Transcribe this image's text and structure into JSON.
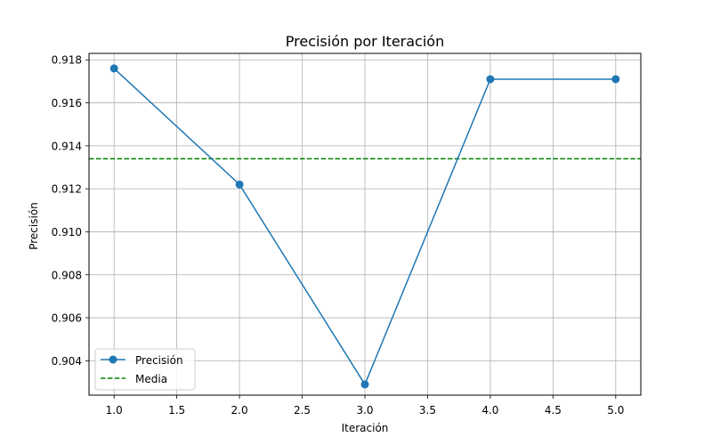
{
  "chart_data": {
    "type": "line",
    "title": "Precisión por Iteración",
    "xlabel": "Iteración",
    "ylabel": "Precisión",
    "xlim": [
      0.8,
      5.2
    ],
    "ylim": [
      0.9024,
      0.9183
    ],
    "xticks": [
      1.0,
      1.5,
      2.0,
      2.5,
      3.0,
      3.5,
      4.0,
      4.5,
      5.0
    ],
    "xtick_labels": [
      "1.0",
      "1.5",
      "2.0",
      "2.5",
      "3.0",
      "3.5",
      "4.0",
      "4.5",
      "5.0"
    ],
    "yticks": [
      0.904,
      0.906,
      0.908,
      0.91,
      0.912,
      0.914,
      0.916,
      0.918
    ],
    "ytick_labels": [
      "0.904",
      "0.906",
      "0.908",
      "0.910",
      "0.912",
      "0.914",
      "0.916",
      "0.918"
    ],
    "grid": true,
    "legend_position": "lower-left",
    "series": [
      {
        "name": "Precisión",
        "style": "line-marker",
        "color": "#1f77b4",
        "x": [
          1,
          2,
          3,
          4,
          5
        ],
        "y": [
          0.9176,
          0.9122,
          0.9029,
          0.9171,
          0.9171
        ]
      },
      {
        "name": "Media",
        "style": "dashed-hline",
        "color": "#008000",
        "y": 0.9134
      }
    ]
  }
}
